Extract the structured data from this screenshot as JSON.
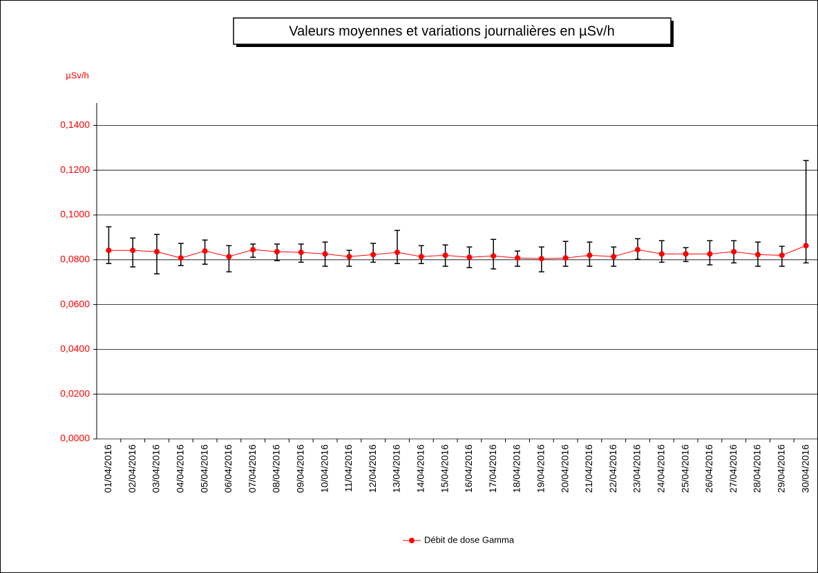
{
  "chart_data": {
    "type": "line",
    "title": "Valeurs moyennes et variations journalières en µSv/h",
    "ylabel": "µSv/h",
    "categories": [
      "01/04/2016",
      "02/04/2016",
      "03/04/2016",
      "04/04/2016",
      "05/04/2016",
      "06/04/2016",
      "07/04/2016",
      "08/04/2016",
      "09/04/2016",
      "10/04/2016",
      "11/04/2016",
      "12/04/2016",
      "13/04/2016",
      "14/04/2016",
      "15/04/2016",
      "16/04/2016",
      "17/04/2016",
      "18/04/2016",
      "19/04/2016",
      "20/04/2016",
      "21/04/2016",
      "22/04/2016",
      "23/04/2016",
      "24/04/2016",
      "25/04/2016",
      "26/04/2016",
      "27/04/2016",
      "28/04/2016",
      "29/04/2016",
      "30/04/2016"
    ],
    "series": [
      {
        "name": "Débit de dose Gamma",
        "color": "#ff0000",
        "values": [
          0.0842,
          0.0842,
          0.0836,
          0.0808,
          0.0839,
          0.0814,
          0.0845,
          0.0836,
          0.0833,
          0.0826,
          0.0814,
          0.0823,
          0.0833,
          0.0814,
          0.082,
          0.0811,
          0.0817,
          0.0808,
          0.0805,
          0.0808,
          0.082,
          0.0814,
          0.0845,
          0.0826,
          0.0826,
          0.0826,
          0.0836,
          0.0823,
          0.082,
          0.0863
        ],
        "low": [
          0.0783,
          0.0768,
          0.0737,
          0.0774,
          0.078,
          0.0746,
          0.0811,
          0.0796,
          0.0789,
          0.0771,
          0.0771,
          0.0789,
          0.0783,
          0.0783,
          0.0771,
          0.0765,
          0.0759,
          0.0771,
          0.0746,
          0.0771,
          0.0771,
          0.0771,
          0.0802,
          0.0789,
          0.0792,
          0.0777,
          0.0786,
          0.0771,
          0.0771,
          0.0786
        ],
        "high": [
          0.0947,
          0.0897,
          0.0913,
          0.0873,
          0.0888,
          0.0863,
          0.087,
          0.087,
          0.087,
          0.0879,
          0.0842,
          0.0873,
          0.0931,
          0.0863,
          0.0866,
          0.0857,
          0.0891,
          0.0839,
          0.0857,
          0.0882,
          0.0879,
          0.0857,
          0.0894,
          0.0885,
          0.0854,
          0.0885,
          0.0885,
          0.0879,
          0.086,
          0.1243
        ]
      }
    ],
    "ylim": [
      0,
      0.15
    ],
    "yticks": [
      {
        "value": 0,
        "label": "0,0000"
      },
      {
        "value": 0.02,
        "label": "0,0200"
      },
      {
        "value": 0.04,
        "label": "0,0400"
      },
      {
        "value": 0.06,
        "label": "0,0600"
      },
      {
        "value": 0.08,
        "label": "0,0800"
      },
      {
        "value": 0.1,
        "label": "0,1000"
      },
      {
        "value": 0.12,
        "label": "0,1200"
      },
      {
        "value": 0.14,
        "label": "0,1400"
      }
    ],
    "grid": true
  }
}
